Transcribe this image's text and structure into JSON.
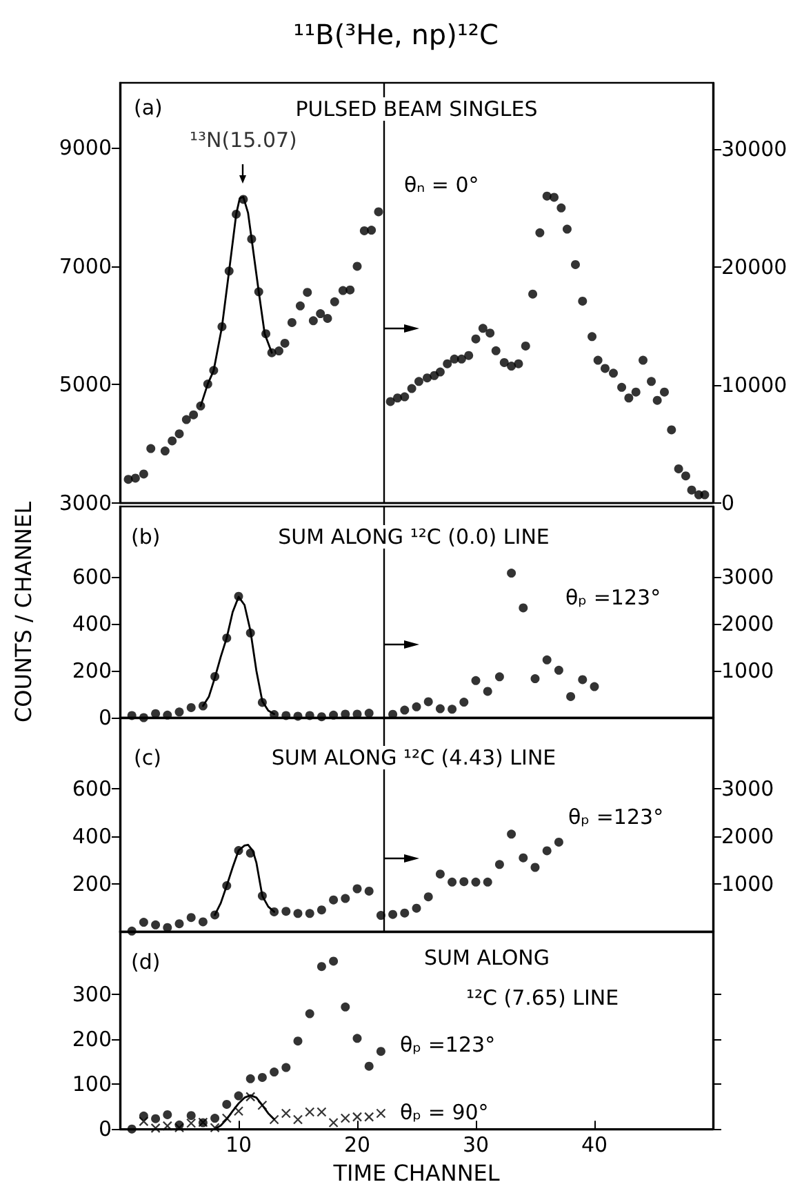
{
  "chart_data": [
    {
      "type": "scatter",
      "title": "¹¹B(³He, np)¹²C",
      "subtitle": "PULSED BEAM SINGLES",
      "annotations": [
        "(a)",
        {
          "text": "¹³N(15.07)",
          "x": 10.4,
          "y": 8170
        },
        "θₙ = 0°"
      ],
      "xlim": [
        0,
        50
      ],
      "ylim": [
        3000,
        10100
      ],
      "yticks": [
        3000,
        5000,
        7000,
        9000
      ],
      "y2lim": [
        0,
        35600
      ],
      "y2ticks": [
        0,
        10000,
        20000,
        30000
      ],
      "tick_labels": "y",
      "marker": "circle",
      "ref_lines": [
        {
          "axis": "x",
          "value": 22.2,
          "color": "#000000"
        }
      ],
      "series": [
        {
          "color": "#000000",
          "axis": "y",
          "x": [
            0.7,
            1.3,
            2.0,
            2.6,
            3.8,
            4.4,
            5.0,
            5.6,
            6.2,
            6.8,
            7.4,
            7.9,
            8.6,
            9.2,
            9.8,
            10.4,
            11.1,
            11.7,
            12.3,
            12.8,
            13.4,
            13.9,
            14.5,
            15.2,
            15.8,
            16.3,
            16.9,
            17.5,
            18.1,
            18.8,
            19.4,
            20.0,
            20.6,
            21.2,
            21.8
          ],
          "values": [
            3400,
            3420,
            3490,
            3920,
            3880,
            4050,
            4170,
            4410,
            4490,
            4640,
            5010,
            5240,
            5980,
            6920,
            7880,
            8130,
            7460,
            6570,
            5860,
            5540,
            5570,
            5700,
            6050,
            6330,
            6560,
            6080,
            6200,
            6120,
            6400,
            6590,
            6600,
            7000,
            7600,
            7610,
            7920
          ]
        },
        {
          "color": "#000000",
          "axis": "y2",
          "x": [
            22.8,
            23.4,
            24.0,
            24.6,
            25.2,
            25.9,
            26.5,
            27.0,
            27.6,
            28.2,
            28.8,
            29.4,
            30.0,
            30.6,
            31.2,
            31.7,
            32.4,
            33.0,
            33.6,
            34.2,
            34.8,
            35.4,
            36.0,
            36.6,
            37.2,
            37.7,
            38.4,
            39.0,
            39.8,
            40.3,
            40.9,
            41.6,
            42.3,
            42.9,
            43.5,
            44.1,
            44.8,
            45.3,
            45.9,
            46.5,
            47.1,
            47.7,
            48.2,
            48.8,
            49.3
          ],
          "values": [
            8600,
            8900,
            9000,
            9700,
            10300,
            10600,
            10800,
            11100,
            11800,
            12200,
            12200,
            12500,
            13900,
            14800,
            14400,
            12900,
            11900,
            11600,
            11800,
            13300,
            17700,
            22900,
            26000,
            25900,
            25000,
            23200,
            20200,
            17100,
            14100,
            12100,
            11400,
            11000,
            9800,
            8900,
            9400,
            12100,
            10300,
            8700,
            9400,
            6200,
            2900,
            2300,
            1100,
            700,
            700
          ]
        },
        {
          "type": "line",
          "color": "#000000",
          "axis": "y",
          "marker": "none",
          "x": [
            6.8,
            7.4,
            7.9,
            8.6,
            9.2,
            9.8,
            10.1,
            10.4,
            10.8,
            11.1,
            11.7,
            12.2,
            12.8
          ],
          "values": [
            4640,
            5010,
            5240,
            5980,
            6920,
            7880,
            8150,
            8170,
            7900,
            7460,
            6570,
            5860,
            5540
          ]
        }
      ]
    },
    {
      "type": "scatter",
      "title": "SUM ALONG ¹²C (0.0) LINE",
      "ylabel": "COUNTS / CHANNEL",
      "annotations": [
        "(b)",
        "θₚ =123°"
      ],
      "xlim": [
        0,
        50
      ],
      "ylim": [
        0,
        900
      ],
      "yticks": [
        0,
        200,
        400,
        600
      ],
      "y2lim": [
        0,
        4500
      ],
      "y2ticks": [
        1000,
        2000,
        3000
      ],
      "tick_labels": "y",
      "marker": "circle",
      "ref_lines": [
        {
          "axis": "x",
          "value": 22.2,
          "color": "#000000"
        }
      ],
      "series": [
        {
          "color": "#000000",
          "axis": "y",
          "x": [
            1,
            2,
            3,
            4,
            5,
            6,
            7,
            8,
            9,
            10,
            11,
            12,
            13,
            14,
            15,
            16,
            17,
            18,
            19,
            20,
            21
          ],
          "values": [
            9,
            0,
            17,
            11,
            24,
            43,
            50,
            175,
            339,
            517,
            361,
            65,
            13,
            9,
            6,
            9,
            4,
            11,
            15,
            15,
            19
          ]
        },
        {
          "color": "#000000",
          "axis": "y2",
          "x": [
            23,
            24,
            25,
            26,
            27,
            28,
            29,
            30,
            31,
            32,
            33,
            34,
            35,
            36,
            37,
            38,
            39,
            40
          ],
          "values": [
            70,
            160,
            230,
            340,
            190,
            180,
            330,
            790,
            560,
            870,
            3080,
            2340,
            830,
            1230,
            1010,
            450,
            810,
            660
          ]
        },
        {
          "type": "line",
          "color": "#000000",
          "axis": "y",
          "marker": "none",
          "x": [
            7,
            7.5,
            8,
            8.5,
            9,
            9.5,
            10,
            10.5,
            11,
            11.5,
            12,
            12.5,
            13
          ],
          "values": [
            50,
            90,
            170,
            260,
            340,
            450,
            515,
            480,
            370,
            200,
            70,
            30,
            15
          ]
        }
      ]
    },
    {
      "type": "scatter",
      "title": "SUM ALONG ¹²C (4.43) LINE",
      "annotations": [
        "(c)",
        "θₚ =123°"
      ],
      "xlim": [
        0,
        50
      ],
      "ylim": [
        0,
        900
      ],
      "yticks": [
        200,
        400,
        600
      ],
      "y2lim": [
        0,
        4500
      ],
      "y2ticks": [
        1000,
        2000,
        3000
      ],
      "tick_labels": "y",
      "marker": "circle",
      "ref_lines": [
        {
          "axis": "x",
          "value": 22.2,
          "color": "#000000"
        }
      ],
      "series": [
        {
          "color": "#000000",
          "axis": "y",
          "x": [
            1,
            2,
            3,
            4,
            5,
            6,
            7,
            8,
            9,
            10,
            11,
            12,
            13,
            14,
            15,
            16,
            17,
            18,
            19,
            20,
            21
          ],
          "values": [
            2,
            39,
            28,
            17,
            33,
            59,
            41,
            70,
            193,
            341,
            330,
            150,
            83,
            85,
            76,
            76,
            91,
            133,
            139,
            180,
            170
          ]
        },
        {
          "color": "#000000",
          "axis": "y2",
          "x": [
            22,
            23,
            24,
            25,
            26,
            27,
            28,
            29,
            30,
            31,
            32,
            33,
            34,
            35,
            36,
            37
          ],
          "values": [
            340,
            360,
            390,
            490,
            730,
            1210,
            1040,
            1050,
            1040,
            1040,
            1410,
            2050,
            1550,
            1350,
            1700,
            1880
          ]
        },
        {
          "type": "line",
          "color": "#000000",
          "axis": "y",
          "marker": "none",
          "x": [
            8,
            8.5,
            9,
            9.5,
            10,
            10.5,
            10.8,
            11.2,
            11.5,
            12,
            12.5,
            13
          ],
          "values": [
            70,
            120,
            193,
            270,
            341,
            362,
            365,
            340,
            290,
            150,
            105,
            83
          ]
        }
      ]
    },
    {
      "type": "scatter",
      "title": "SUM ALONG",
      "subtitle": "¹²C (7.65) LINE",
      "xlabel": "TIME CHANNEL",
      "annotations": [
        "(d)",
        "θₚ =123°",
        "θₚ = 90°"
      ],
      "xlim": [
        0,
        50
      ],
      "xticks": [
        10,
        20,
        30,
        40
      ],
      "ylim": [
        0,
        440
      ],
      "yticks": [
        0,
        100,
        200,
        300
      ],
      "marker": "circle",
      "series": [
        {
          "color": "#000000",
          "x": [
            1,
            2,
            3,
            4,
            5,
            6,
            7,
            8,
            9,
            10,
            11,
            12,
            13,
            14,
            15,
            16,
            17,
            18,
            19,
            20,
            21,
            22
          ],
          "values": [
            0,
            29,
            23,
            32,
            9,
            30,
            14,
            24,
            55,
            74,
            112,
            115,
            127,
            137,
            196,
            257,
            362,
            374,
            272,
            202,
            140,
            173
          ]
        },
        {
          "color": "#000000",
          "marker": "cross",
          "x": [
            2,
            3,
            4,
            5,
            6,
            7,
            8,
            9,
            10,
            11,
            12,
            13,
            14,
            15,
            16,
            17,
            18,
            19,
            20,
            21,
            22
          ],
          "values": [
            17,
            2,
            7,
            3,
            13,
            15,
            3,
            24,
            40,
            72,
            53,
            21,
            35,
            21,
            38,
            38,
            14,
            24,
            27,
            27,
            35
          ]
        },
        {
          "type": "line",
          "color": "#000000",
          "marker": "none",
          "x": [
            8,
            8.5,
            9,
            9.5,
            10,
            10.5,
            11,
            11.5,
            12,
            12.5,
            13
          ],
          "values": [
            0,
            8,
            22,
            40,
            57,
            70,
            75,
            70,
            53,
            35,
            22
          ]
        }
      ]
    }
  ]
}
